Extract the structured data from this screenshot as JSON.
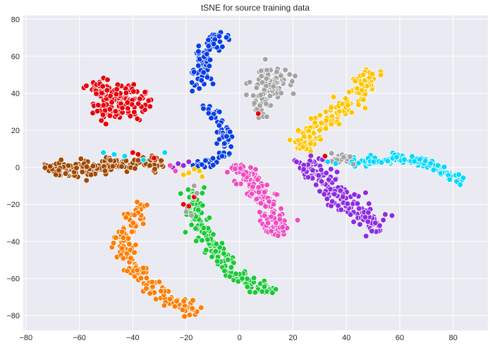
{
  "chart_data": {
    "type": "scatter",
    "title": "tSNE for source training data",
    "xlabel": "",
    "ylabel": "",
    "xlim": [
      -81,
      93
    ],
    "ylim": [
      -88,
      82
    ],
    "x_ticks": [
      -80,
      -60,
      -40,
      -20,
      0,
      20,
      40,
      60,
      80
    ],
    "y_ticks": [
      -80,
      -60,
      -40,
      -20,
      0,
      20,
      40,
      60,
      80
    ],
    "grid": true,
    "legend": "none",
    "background_color": "#eaeaf2",
    "grid_color": "#ffffff",
    "marker_edge_color": "#ffffff",
    "series": [
      {
        "color": "#0a3ee6",
        "shape": "arc",
        "points": [
          [
            -6,
            73
          ],
          [
            -10,
            68
          ],
          [
            -13,
            62
          ],
          [
            -15,
            55
          ],
          [
            -14,
            48
          ],
          [
            -14,
            42
          ]
        ],
        "width": 2.0,
        "count": 90
      },
      {
        "color": "#0a3ee6",
        "shape": "arc",
        "points": [
          [
            -12,
            34
          ],
          [
            -9,
            28
          ],
          [
            -6,
            20
          ],
          [
            -5,
            13
          ],
          [
            -5,
            7
          ],
          [
            -10,
            3
          ],
          [
            -18,
            1
          ]
        ],
        "width": 1.4,
        "count": 70
      },
      {
        "color": "#e8000b",
        "shape": "blob",
        "center": [
          -45,
          35
        ],
        "spread": [
          6.5,
          6.5
        ],
        "count": 130
      },
      {
        "color": "#e8000b",
        "shape": "blob",
        "center": [
          -52,
          42
        ],
        "spread": [
          3.0,
          3.0
        ],
        "count": 40
      },
      {
        "color": "#a3a3a3",
        "shape": "blob",
        "center": [
          11,
          45
        ],
        "spread": [
          4.5,
          6.0
        ],
        "count": 90
      },
      {
        "color": "#a3a3a3",
        "shape": "arc",
        "points": [
          [
            7,
            40
          ],
          [
            8,
            32
          ],
          [
            9,
            27
          ]
        ],
        "width": 1.5,
        "count": 25
      },
      {
        "color": "#ffc400",
        "shape": "arc",
        "points": [
          [
            50,
            52
          ],
          [
            46,
            42
          ],
          [
            40,
            33
          ],
          [
            32,
            25
          ],
          [
            26,
            18
          ],
          [
            22,
            12
          ],
          [
            23,
            9
          ]
        ],
        "width": 2.3,
        "count": 160
      },
      {
        "color": "#8b2be2",
        "shape": "arc",
        "points": [
          [
            25,
            5
          ],
          [
            30,
            -5
          ],
          [
            37,
            -14
          ],
          [
            42,
            -22
          ],
          [
            48,
            -28
          ],
          [
            54,
            -33
          ]
        ],
        "width": 2.8,
        "count": 170
      },
      {
        "color": "#00d7ff",
        "shape": "arc",
        "points": [
          [
            40,
            3
          ],
          [
            50,
            3
          ],
          [
            60,
            5
          ],
          [
            68,
            3
          ],
          [
            74,
            0
          ],
          [
            78,
            -4
          ],
          [
            84,
            -8
          ]
        ],
        "width": 1.3,
        "count": 130
      },
      {
        "color": "#f14cc1",
        "shape": "arc",
        "points": [
          [
            -2,
            1
          ],
          [
            3,
            -6
          ],
          [
            8,
            -14
          ],
          [
            11,
            -22
          ],
          [
            13,
            -30
          ],
          [
            15,
            -37
          ]
        ],
        "width": 2.3,
        "count": 150
      },
      {
        "color": "#9f4800",
        "shape": "arc",
        "points": [
          [
            -73,
            0
          ],
          [
            -65,
            -1
          ],
          [
            -55,
            0
          ],
          [
            -45,
            2
          ],
          [
            -36,
            3
          ],
          [
            -28,
            2
          ]
        ],
        "width": 2.0,
        "count": 190
      },
      {
        "color": "#1ac938",
        "shape": "arc",
        "points": [
          [
            -18,
            -12
          ],
          [
            -16,
            -25
          ],
          [
            -14,
            -37
          ],
          [
            -8,
            -47
          ],
          [
            -4,
            -55
          ],
          [
            0,
            -60
          ],
          [
            8,
            -64
          ],
          [
            14,
            -67
          ]
        ],
        "width": 2.0,
        "count": 170
      },
      {
        "color": "#ff7c00",
        "shape": "arc",
        "points": [
          [
            -36,
            -20
          ],
          [
            -43,
            -34
          ],
          [
            -44,
            -45
          ],
          [
            -38,
            -57
          ],
          [
            -30,
            -67
          ],
          [
            -24,
            -74
          ],
          [
            -15,
            -78
          ]
        ],
        "width": 2.0,
        "count": 160
      },
      {
        "color": "#a3a3a3",
        "shape": "blob",
        "center": [
          38,
          5
        ],
        "spread": [
          3.0,
          2.0
        ],
        "count": 18
      },
      {
        "color": "#e8000b",
        "shape": "scatter",
        "points": [
          [
            -21,
            -20
          ],
          [
            -19,
            -21
          ],
          [
            -17,
            -16
          ],
          [
            -40,
            8
          ],
          [
            -38,
            7
          ],
          [
            -32,
            5
          ],
          [
            7,
            29
          ],
          [
            32,
            6
          ]
        ]
      },
      {
        "color": "#00d7ff",
        "shape": "scatter",
        "points": [
          [
            -51,
            8
          ],
          [
            -47,
            7
          ],
          [
            -43,
            6
          ],
          [
            -36,
            4
          ],
          [
            -28,
            8
          ],
          [
            33,
            3
          ],
          [
            36,
            2
          ]
        ]
      },
      {
        "color": "#ffc400",
        "shape": "scatter",
        "points": [
          [
            -22,
            1
          ],
          [
            -19,
            -3
          ],
          [
            -17,
            -1
          ],
          [
            -15,
            -2
          ],
          [
            -14,
            -5
          ],
          [
            -21,
            -4
          ]
        ]
      },
      {
        "color": "#a3a3a3",
        "shape": "scatter",
        "points": [
          [
            -20,
            -24
          ],
          [
            -18,
            -26
          ],
          [
            -16,
            -14
          ],
          [
            -17,
            -10
          ]
        ]
      },
      {
        "color": "#8b2be2",
        "shape": "scatter",
        "points": [
          [
            -25,
            0
          ],
          [
            -23,
            2
          ],
          [
            -21,
            1
          ],
          [
            -19,
            3
          ]
        ]
      },
      {
        "color": "#f14cc1",
        "shape": "scatter",
        "points": [
          [
            -26,
            1
          ],
          [
            -24,
            -2
          ]
        ]
      }
    ]
  }
}
